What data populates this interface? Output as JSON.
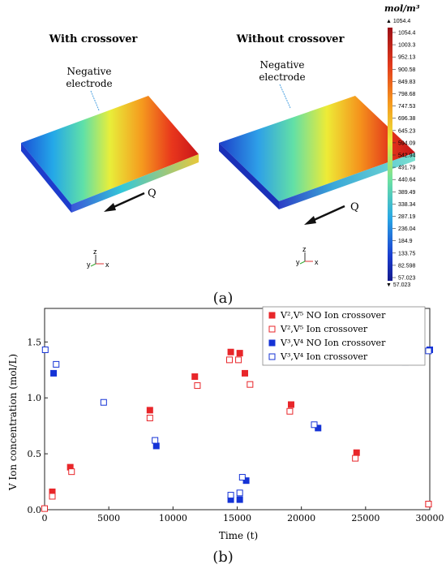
{
  "panel_a": {
    "left_title": "With crossover",
    "right_title": "Without crossover",
    "electrode_label_line1": "Negative",
    "electrode_label_line2": "electrode",
    "flow_label": "Q",
    "axis_z": "z",
    "axis_y": "y",
    "axis_x": "x",
    "colorbar_unit": "mol/m³",
    "colorbar_max": "▲ 1054.4",
    "colorbar_min": "▼ 57.023",
    "colorbar_ticks": [
      "1054.4",
      "1003.3",
      "952.13",
      "900.58",
      "849.83",
      "798.68",
      "747.53",
      "696.38",
      "645.23",
      "594.09",
      "542.94",
      "491.79",
      "440.64",
      "389.49",
      "338.34",
      "287.19",
      "236.04",
      "184.9",
      "133.75",
      "82.598",
      "57.023"
    ],
    "caption": "(a)"
  },
  "chart_data": {
    "type": "scatter",
    "xlabel": "Time (t)",
    "ylabel": "V Ion concentration (mol/L)",
    "xlim": [
      0,
      30000
    ],
    "ylim": [
      0,
      1.8
    ],
    "xticks": [
      "0",
      "5000",
      "10000",
      "15000",
      "20000",
      "25000",
      "30000"
    ],
    "yticks": [
      "0.0",
      "0.5",
      "1.0",
      "1.5"
    ],
    "legend_position": "top-right",
    "series": [
      {
        "name": "V²,V⁵ NO Ion crossover",
        "color": "#e8262a",
        "filled": true,
        "points": [
          [
            600,
            0.16
          ],
          [
            2000,
            0.38
          ],
          [
            8200,
            0.89
          ],
          [
            11700,
            1.19
          ],
          [
            14500,
            1.41
          ],
          [
            15200,
            1.4
          ],
          [
            15600,
            1.22
          ],
          [
            19200,
            0.94
          ],
          [
            24300,
            0.51
          ],
          [
            29900,
            0.05
          ]
        ]
      },
      {
        "name": "V²,V⁵ Ion crossover",
        "color": "#e8262a",
        "filled": false,
        "points": [
          [
            0,
            0.01
          ],
          [
            600,
            0.12
          ],
          [
            2100,
            0.34
          ],
          [
            8200,
            0.82
          ],
          [
            11900,
            1.11
          ],
          [
            14400,
            1.34
          ],
          [
            15100,
            1.34
          ],
          [
            16000,
            1.12
          ],
          [
            19100,
            0.88
          ],
          [
            24200,
            0.46
          ],
          [
            29900,
            0.05
          ]
        ]
      },
      {
        "name": "V³,V⁴ NO Ion crossover",
        "color": "#1533d6",
        "filled": true,
        "points": [
          [
            700,
            1.22
          ],
          [
            8700,
            0.57
          ],
          [
            14500,
            0.09
          ],
          [
            15200,
            0.09
          ],
          [
            15700,
            0.26
          ],
          [
            21300,
            0.73
          ],
          [
            28100,
            1.32
          ],
          [
            30000,
            1.43
          ]
        ]
      },
      {
        "name": "V³,V⁴ Ion crossover",
        "color": "#1533d6",
        "filled": false,
        "points": [
          [
            50,
            1.43
          ],
          [
            900,
            1.3
          ],
          [
            4600,
            0.96
          ],
          [
            8600,
            0.62
          ],
          [
            14500,
            0.13
          ],
          [
            15200,
            0.15
          ],
          [
            15400,
            0.29
          ],
          [
            21000,
            0.76
          ],
          [
            28200,
            1.34
          ],
          [
            29900,
            1.42
          ]
        ]
      }
    ]
  },
  "panel_b": {
    "caption": "(b)"
  }
}
